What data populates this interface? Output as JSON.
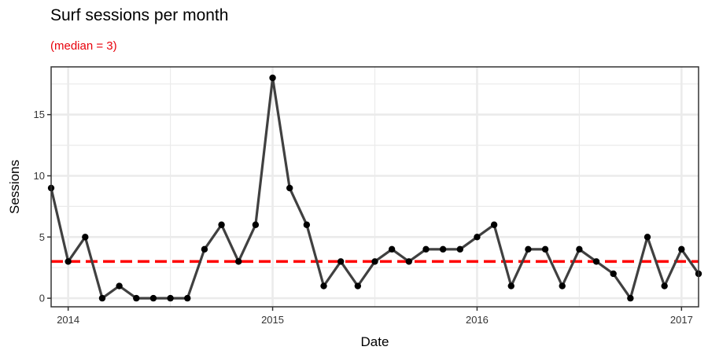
{
  "chart_data": {
    "type": "line",
    "title": "Surf sessions per month",
    "subtitle": "(median = 3)",
    "xlabel": "Date",
    "ylabel": "Sessions",
    "x_axis": "date",
    "xlim": [
      "2013-12",
      "2017-02"
    ],
    "ylim": [
      -0.7,
      18.9
    ],
    "x_ticks": [
      {
        "label": "2014",
        "date": "2014-01"
      },
      {
        "label": "2015",
        "date": "2015-01"
      },
      {
        "label": "2016",
        "date": "2016-01"
      },
      {
        "label": "2017",
        "date": "2017-01"
      }
    ],
    "y_ticks": [
      0,
      5,
      10,
      15
    ],
    "median": 3,
    "grid": true,
    "series": [
      {
        "x": [
          "2013-12",
          "2014-01",
          "2014-02",
          "2014-03",
          "2014-04",
          "2014-05",
          "2014-06",
          "2014-07",
          "2014-08",
          "2014-09",
          "2014-10",
          "2014-11",
          "2014-12",
          "2015-01",
          "2015-02",
          "2015-03",
          "2015-04",
          "2015-05",
          "2015-06",
          "2015-07",
          "2015-08",
          "2015-09",
          "2015-10",
          "2015-11",
          "2015-12",
          "2016-01",
          "2016-02",
          "2016-03",
          "2016-04",
          "2016-05",
          "2016-06",
          "2016-07",
          "2016-08",
          "2016-09",
          "2016-10",
          "2016-11",
          "2016-12",
          "2017-01",
          "2017-02"
        ],
        "values": [
          9,
          3,
          5,
          0,
          1,
          0,
          0,
          0,
          0,
          4,
          6,
          3,
          6,
          18,
          9,
          6,
          1,
          3,
          1,
          3,
          4,
          3,
          4,
          4,
          4,
          5,
          6,
          1,
          4,
          4,
          1,
          4,
          3,
          2,
          0,
          5,
          1,
          4,
          2
        ]
      }
    ],
    "colors": {
      "line": "#404040",
      "points": "#000000",
      "median": "#ff0000",
      "subtitle": "#e8000b"
    }
  }
}
